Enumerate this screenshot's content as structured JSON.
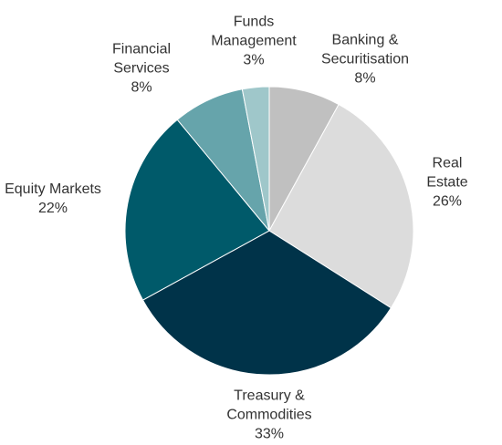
{
  "chart_data": {
    "type": "pie",
    "categories": [
      "Banking &\nSecuritisation",
      "Real Estate",
      "Treasury &\nCommodities",
      "Equity Markets",
      "Financial\nServices",
      "Funds\nManagement"
    ],
    "values": [
      8,
      26,
      33,
      22,
      8,
      3
    ],
    "value_labels": [
      "8%",
      "26%",
      "33%",
      "22%",
      "8%",
      "3%"
    ],
    "colors": [
      "#c0c0c0",
      "#dcdcdc",
      "#003349",
      "#005a6a",
      "#66a4ab",
      "#9fc7ca"
    ]
  }
}
